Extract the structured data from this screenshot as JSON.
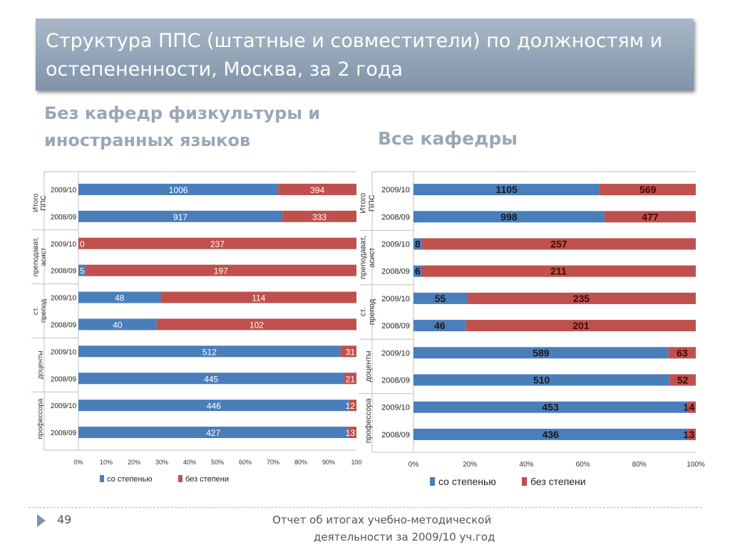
{
  "title": "Структура ППС (штатные и совместители) по должностям и остепененности, Москва, за 2 года",
  "subtitle_left": "Без кафедр физкультуры и иностранных языков",
  "subtitle_right": "Все кафедры",
  "footer": {
    "page_number": "49",
    "line1": "Отчет об итогах учебно-методической",
    "line2": "деятельности за 2009/10 уч.год"
  },
  "colors": {
    "with_degree": "#4a7ebb",
    "without_degree": "#c0504d"
  },
  "chart_data": [
    {
      "type": "bar",
      "stacked": "percent",
      "orientation": "horizontal",
      "groups": [
        "Итого ППС",
        "ст. преподават, ассист",
        "ст. преподават, ассист",
        "доценты",
        "профессора"
      ],
      "categories": [
        "2009/10",
        "2008/09",
        "2009/10",
        "2008/09",
        "2009/10",
        "2008/09",
        "2009/10",
        "2008/09",
        "2009/10",
        "2008/09"
      ],
      "series": [
        {
          "name": "со степенью",
          "values": [
            1006,
            917,
            0,
            5,
            48,
            40,
            512,
            445,
            446,
            427
          ],
          "labels": [
            "1006",
            "917",
            "0",
            "5",
            "48",
            "40",
            "512",
            "445",
            "446",
            "427"
          ]
        },
        {
          "name": "без степени",
          "values": [
            394,
            333,
            237,
            197,
            114,
            102,
            31,
            21,
            12,
            13
          ],
          "labels": [
            "394",
            "333",
            "237",
            "197",
            "114",
            "102",
            "31",
            "21",
            "12",
            "13"
          ]
        }
      ],
      "group_labels": [
        "Итого ППС",
        "преподават, асист",
        "ст. препод",
        "доценты",
        "профессора"
      ],
      "xticks": [
        "0%",
        "10%",
        "20%",
        "30%",
        "40%",
        "50%",
        "60%",
        "70%",
        "80%",
        "90%",
        "100"
      ],
      "xlim": [
        0,
        100
      ],
      "legend_position": "bottom"
    },
    {
      "type": "bar",
      "stacked": "percent",
      "orientation": "horizontal",
      "categories": [
        "2009/10",
        "2008/09",
        "2009/10",
        "2008/09",
        "2009/10",
        "2008/09",
        "2009/10",
        "2008/09",
        "2009/10",
        "2008/09"
      ],
      "series": [
        {
          "name": "со степенью",
          "values": [
            1105,
            998,
            8,
            6,
            55,
            46,
            589,
            510,
            453,
            436
          ],
          "labels": [
            "1105",
            "998",
            "8",
            "6",
            "55",
            "46",
            "589",
            "510",
            "453",
            "436"
          ]
        },
        {
          "name": "без степени",
          "values": [
            569,
            477,
            257,
            211,
            235,
            201,
            63,
            52,
            14,
            13
          ],
          "labels": [
            "569",
            "477",
            "257",
            "211",
            "235",
            "201",
            "63",
            "52",
            "14",
            "13"
          ]
        }
      ],
      "group_labels": [
        "Итого ППС",
        "преподават, асист",
        "ст. препод",
        "доценты",
        "профессора"
      ],
      "xticks": [
        "0%",
        "20%",
        "40%",
        "60%",
        "80%",
        "100%"
      ],
      "xlim": [
        0,
        100
      ],
      "legend_position": "bottom"
    }
  ]
}
